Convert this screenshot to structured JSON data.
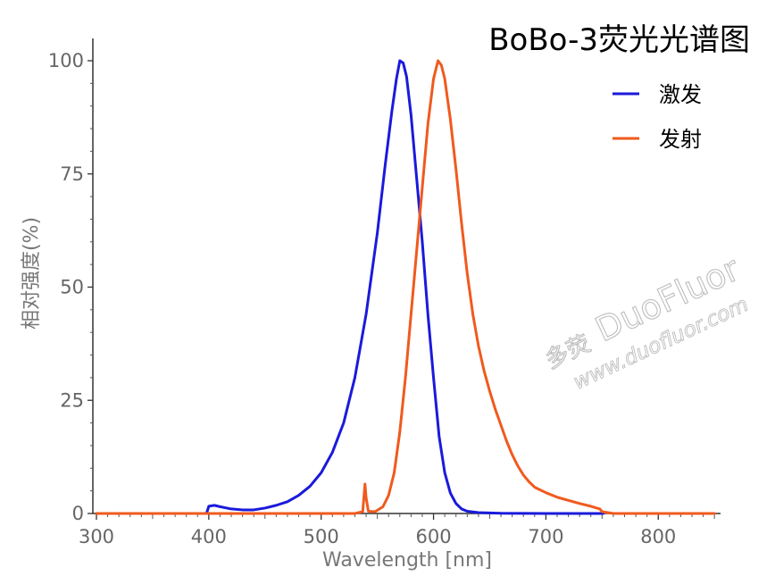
{
  "chart_data": {
    "type": "line",
    "title": "BoBo-3荧光光谱图",
    "xlabel": "Wavelength [nm]",
    "ylabel": "相对强度(%)",
    "xlim": [
      295,
      850
    ],
    "ylim": [
      0,
      105
    ],
    "x_ticks": [
      300,
      400,
      500,
      600,
      700,
      800
    ],
    "y_ticks": [
      0,
      25,
      50,
      75,
      100
    ],
    "grid": false,
    "legend_position": "top-right",
    "series": [
      {
        "name": "激发",
        "color": "#1a1adb",
        "points": [
          [
            300,
            0
          ],
          [
            398,
            0
          ],
          [
            400,
            1.6
          ],
          [
            405,
            1.8
          ],
          [
            410,
            1.5
          ],
          [
            420,
            1.0
          ],
          [
            430,
            0.8
          ],
          [
            440,
            0.8
          ],
          [
            450,
            1.2
          ],
          [
            460,
            1.8
          ],
          [
            470,
            2.6
          ],
          [
            480,
            4.0
          ],
          [
            490,
            6.0
          ],
          [
            500,
            9.0
          ],
          [
            510,
            13.5
          ],
          [
            520,
            20.0
          ],
          [
            530,
            30.0
          ],
          [
            540,
            44.0
          ],
          [
            550,
            62.0
          ],
          [
            557,
            77.0
          ],
          [
            563,
            89.0
          ],
          [
            567,
            96.0
          ],
          [
            570,
            100.0
          ],
          [
            573,
            99.5
          ],
          [
            576,
            96.5
          ],
          [
            580,
            88.0
          ],
          [
            585,
            74.0
          ],
          [
            590,
            60.0
          ],
          [
            595,
            44.0
          ],
          [
            600,
            30.0
          ],
          [
            605,
            17.0
          ],
          [
            610,
            9.0
          ],
          [
            615,
            4.5
          ],
          [
            620,
            2.2
          ],
          [
            625,
            1.0
          ],
          [
            630,
            0.5
          ],
          [
            640,
            0.2
          ],
          [
            660,
            0.05
          ],
          [
            700,
            0
          ],
          [
            751,
            0
          ]
        ]
      },
      {
        "name": "发射",
        "color": "#f05a1e",
        "points": [
          [
            300,
            0
          ],
          [
            530,
            0
          ],
          [
            537,
            0.4
          ],
          [
            539,
            6.5
          ],
          [
            540,
            3.5
          ],
          [
            542,
            0.5
          ],
          [
            548,
            0.4
          ],
          [
            555,
            1.5
          ],
          [
            560,
            4.0
          ],
          [
            565,
            9.0
          ],
          [
            570,
            18.0
          ],
          [
            575,
            30.0
          ],
          [
            580,
            44.0
          ],
          [
            585,
            58.0
          ],
          [
            590,
            72.0
          ],
          [
            595,
            86.0
          ],
          [
            600,
            96.0
          ],
          [
            604,
            100.0
          ],
          [
            607,
            99.0
          ],
          [
            610,
            96.0
          ],
          [
            615,
            87.0
          ],
          [
            620,
            76.0
          ],
          [
            625,
            64.0
          ],
          [
            630,
            53.0
          ],
          [
            635,
            44.0
          ],
          [
            640,
            37.0
          ],
          [
            645,
            31.5
          ],
          [
            650,
            27.0
          ],
          [
            655,
            23.0
          ],
          [
            660,
            19.5
          ],
          [
            665,
            16.0
          ],
          [
            670,
            13.0
          ],
          [
            675,
            10.5
          ],
          [
            680,
            8.5
          ],
          [
            685,
            7.0
          ],
          [
            690,
            5.8
          ],
          [
            700,
            4.6
          ],
          [
            710,
            3.6
          ],
          [
            720,
            2.9
          ],
          [
            730,
            2.2
          ],
          [
            740,
            1.6
          ],
          [
            748,
            1.0
          ],
          [
            750,
            0.4
          ],
          [
            760,
            0
          ],
          [
            850,
            0
          ]
        ]
      }
    ]
  },
  "watermark": {
    "logo_text": "DuoFluor",
    "url_text": "www.duofluor.com",
    "badge_text": "多荧"
  }
}
